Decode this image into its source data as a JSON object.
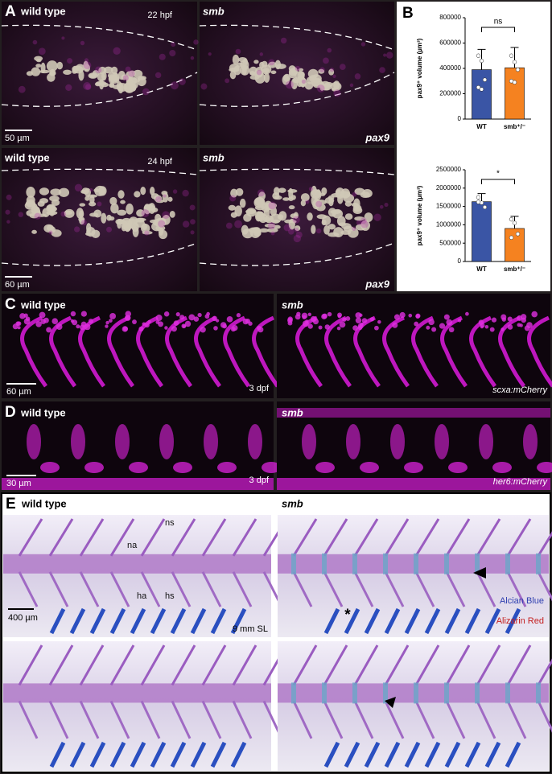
{
  "panels": {
    "A": {
      "label": "A",
      "rows": [
        {
          "left": "wild type",
          "stage": "22 hpf",
          "right": "smb",
          "scale": "50 µm",
          "gene": "pax9"
        },
        {
          "left": "wild type",
          "stage": "24 hpf",
          "right": "smb",
          "scale": "60 µm",
          "gene": "pax9"
        }
      ]
    },
    "B": {
      "label": "B"
    },
    "C": {
      "label": "C",
      "left": "wild type",
      "right": "smb",
      "scale": "60 µm",
      "stage": "3 dpf",
      "reporter": "scxa:mCherry"
    },
    "D": {
      "label": "D",
      "left": "wild type",
      "right": "smb",
      "scale": "30 µm",
      "stage": "3 dpf",
      "reporter": "her6:mCherry"
    },
    "E": {
      "label": "E",
      "left": "wild type",
      "right": "smb",
      "ns": "ns",
      "na": "na",
      "ha": "ha",
      "hs": "hs",
      "scale": "400 µm",
      "size": "9 mm SL",
      "asterisk": "*",
      "stain1": "Alcian Blue",
      "stain2": "Alizarin Red"
    }
  },
  "chart_data": [
    {
      "type": "bar",
      "ylabel": "pax9⁺ volume (µm³)",
      "categories": [
        "WT",
        "smb⁺/⁻"
      ],
      "colors": [
        "#3a55a5",
        "#f58220"
      ],
      "values": [
        390000,
        405000
      ],
      "errors": [
        160000,
        160000
      ],
      "points": [
        [
          500000,
          460000,
          310000,
          250000,
          235000
        ],
        [
          500000,
          450000,
          390000,
          300000,
          290000
        ]
      ],
      "ylim": [
        0,
        800000
      ],
      "yticks": [
        0,
        200000,
        400000,
        600000,
        800000
      ],
      "significance": "ns"
    },
    {
      "type": "bar",
      "ylabel": "pax9⁺ volume (µm³)",
      "categories": [
        "WT",
        "smb⁺/⁻"
      ],
      "colors": [
        "#3a55a5",
        "#f58220"
      ],
      "values": [
        1630000,
        900000
      ],
      "errors": [
        220000,
        330000
      ],
      "points": [
        [
          1750000,
          1600000,
          1480000,
          1620000
        ],
        [
          1150000,
          1050000,
          750000,
          650000
        ]
      ],
      "ylim": [
        0,
        2500000
      ],
      "yticks": [
        0,
        500000,
        1000000,
        1500000,
        2000000,
        2500000
      ],
      "significance": "*"
    }
  ]
}
